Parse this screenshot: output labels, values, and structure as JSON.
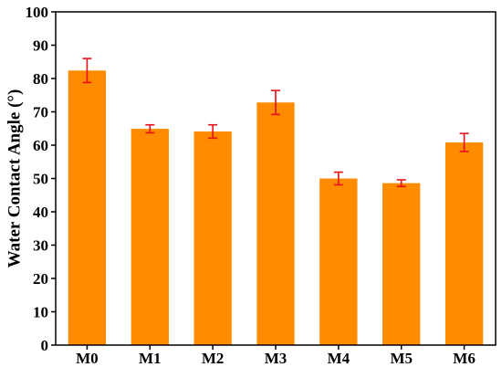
{
  "chart_data": {
    "type": "bar",
    "categories": [
      "M0",
      "M1",
      "M2",
      "M3",
      "M4",
      "M5",
      "M6"
    ],
    "values": [
      82.4,
      64.9,
      64.1,
      72.8,
      50.0,
      48.6,
      60.8
    ],
    "errors": [
      3.6,
      1.2,
      2.0,
      3.6,
      1.9,
      1.0,
      2.7
    ],
    "title": "",
    "xlabel": "",
    "ylabel": "Water Contact Angle (°)",
    "ylim": [
      0,
      100
    ],
    "yticks": [
      0,
      10,
      20,
      30,
      40,
      50,
      60,
      70,
      80,
      90,
      100
    ],
    "grid": false,
    "bar_color": "#FF8C00",
    "error_color": "#E8101A"
  }
}
